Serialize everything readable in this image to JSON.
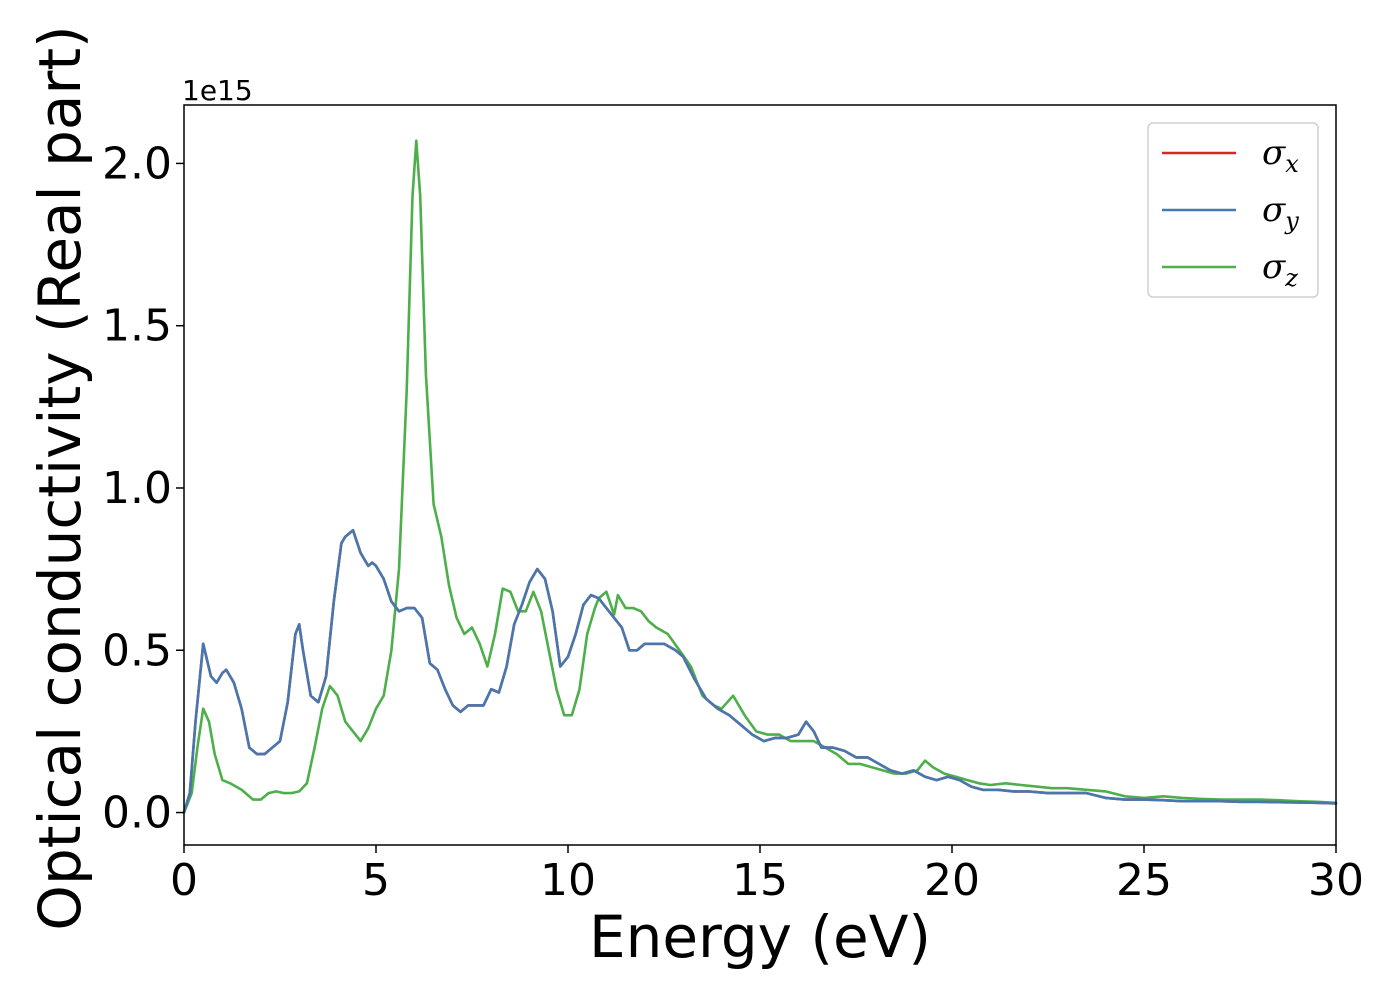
{
  "chart_data": {
    "type": "line",
    "xlabel": "Energy (eV)",
    "ylabel": "Optical conductivity (Real part)",
    "y_offset_label": "1e15",
    "xlim": [
      0,
      30
    ],
    "ylim": [
      -0.1,
      2.18
    ],
    "x_ticks": [
      0,
      5,
      10,
      15,
      20,
      25,
      30
    ],
    "x_tick_labels": [
      "0",
      "5",
      "10",
      "15",
      "20",
      "25",
      "30"
    ],
    "y_ticks": [
      0.0,
      0.5,
      1.0,
      1.5,
      2.0
    ],
    "y_tick_labels": [
      "0.0",
      "0.5",
      "1.0",
      "1.5",
      "2.0"
    ],
    "grid": false,
    "legend_position": "top-right",
    "series": [
      {
        "name": "σx",
        "symbol": "σ",
        "subscript": "x",
        "color": "#d62728",
        "x": [
          0,
          0.15,
          0.3,
          0.5,
          0.7,
          0.85,
          1.0,
          1.1,
          1.3,
          1.5,
          1.7,
          1.9,
          2.1,
          2.3,
          2.5,
          2.7,
          2.9,
          3.0,
          3.1,
          3.3,
          3.5,
          3.7,
          3.9,
          4.1,
          4.2,
          4.4,
          4.6,
          4.8,
          4.9,
          5.0,
          5.2,
          5.4,
          5.6,
          5.8,
          6.0,
          6.2,
          6.4,
          6.6,
          6.8,
          7.0,
          7.2,
          7.4,
          7.6,
          7.8,
          8.0,
          8.2,
          8.4,
          8.6,
          8.8,
          9.0,
          9.2,
          9.4,
          9.6,
          9.8,
          10.0,
          10.2,
          10.4,
          10.6,
          10.8,
          11.0,
          11.2,
          11.4,
          11.6,
          11.8,
          12.0,
          12.2,
          12.5,
          12.8,
          13.0,
          13.3,
          13.6,
          13.9,
          14.2,
          14.5,
          14.8,
          15.1,
          15.4,
          15.7,
          16.0,
          16.2,
          16.4,
          16.6,
          16.9,
          17.2,
          17.5,
          17.8,
          18.1,
          18.4,
          18.7,
          19.0,
          19.3,
          19.6,
          19.9,
          20.2,
          20.5,
          20.8,
          21.2,
          21.6,
          22.0,
          22.5,
          23.0,
          23.5,
          24.0,
          24.5,
          25.0,
          25.5,
          26.0,
          26.5,
          27.0,
          27.5,
          28.0,
          28.5,
          29.0,
          29.5,
          30.0
        ],
        "y": [
          0.0,
          0.06,
          0.28,
          0.52,
          0.42,
          0.4,
          0.43,
          0.44,
          0.4,
          0.32,
          0.2,
          0.18,
          0.18,
          0.2,
          0.22,
          0.34,
          0.55,
          0.58,
          0.5,
          0.36,
          0.34,
          0.42,
          0.65,
          0.83,
          0.85,
          0.87,
          0.8,
          0.76,
          0.77,
          0.76,
          0.72,
          0.65,
          0.62,
          0.63,
          0.63,
          0.6,
          0.46,
          0.44,
          0.38,
          0.33,
          0.31,
          0.33,
          0.33,
          0.33,
          0.38,
          0.37,
          0.45,
          0.58,
          0.64,
          0.71,
          0.75,
          0.72,
          0.62,
          0.45,
          0.48,
          0.55,
          0.64,
          0.67,
          0.66,
          0.63,
          0.6,
          0.57,
          0.5,
          0.5,
          0.52,
          0.52,
          0.52,
          0.5,
          0.48,
          0.41,
          0.35,
          0.32,
          0.3,
          0.27,
          0.24,
          0.22,
          0.23,
          0.23,
          0.24,
          0.28,
          0.25,
          0.2,
          0.2,
          0.19,
          0.17,
          0.17,
          0.15,
          0.13,
          0.12,
          0.13,
          0.11,
          0.1,
          0.11,
          0.1,
          0.08,
          0.07,
          0.07,
          0.065,
          0.065,
          0.06,
          0.06,
          0.06,
          0.045,
          0.04,
          0.04,
          0.038,
          0.035,
          0.035,
          0.035,
          0.033,
          0.033,
          0.032,
          0.031,
          0.03,
          0.028
        ]
      },
      {
        "name": "σy",
        "symbol": "σ",
        "subscript": "y",
        "color": "#4678b0",
        "x": [
          0,
          0.15,
          0.3,
          0.5,
          0.7,
          0.85,
          1.0,
          1.1,
          1.3,
          1.5,
          1.7,
          1.9,
          2.1,
          2.3,
          2.5,
          2.7,
          2.9,
          3.0,
          3.1,
          3.3,
          3.5,
          3.7,
          3.9,
          4.1,
          4.2,
          4.4,
          4.6,
          4.8,
          4.9,
          5.0,
          5.2,
          5.4,
          5.6,
          5.8,
          6.0,
          6.2,
          6.4,
          6.6,
          6.8,
          7.0,
          7.2,
          7.4,
          7.6,
          7.8,
          8.0,
          8.2,
          8.4,
          8.6,
          8.8,
          9.0,
          9.2,
          9.4,
          9.6,
          9.8,
          10.0,
          10.2,
          10.4,
          10.6,
          10.8,
          11.0,
          11.2,
          11.4,
          11.6,
          11.8,
          12.0,
          12.2,
          12.5,
          12.8,
          13.0,
          13.3,
          13.6,
          13.9,
          14.2,
          14.5,
          14.8,
          15.1,
          15.4,
          15.7,
          16.0,
          16.2,
          16.4,
          16.6,
          16.9,
          17.2,
          17.5,
          17.8,
          18.1,
          18.4,
          18.7,
          19.0,
          19.3,
          19.6,
          19.9,
          20.2,
          20.5,
          20.8,
          21.2,
          21.6,
          22.0,
          22.5,
          23.0,
          23.5,
          24.0,
          24.5,
          25.0,
          25.5,
          26.0,
          26.5,
          27.0,
          27.5,
          28.0,
          28.5,
          29.0,
          29.5,
          30.0
        ],
        "y": [
          0.0,
          0.06,
          0.28,
          0.52,
          0.42,
          0.4,
          0.43,
          0.44,
          0.4,
          0.32,
          0.2,
          0.18,
          0.18,
          0.2,
          0.22,
          0.34,
          0.55,
          0.58,
          0.5,
          0.36,
          0.34,
          0.42,
          0.65,
          0.83,
          0.85,
          0.87,
          0.8,
          0.76,
          0.77,
          0.76,
          0.72,
          0.65,
          0.62,
          0.63,
          0.63,
          0.6,
          0.46,
          0.44,
          0.38,
          0.33,
          0.31,
          0.33,
          0.33,
          0.33,
          0.38,
          0.37,
          0.45,
          0.58,
          0.64,
          0.71,
          0.75,
          0.72,
          0.62,
          0.45,
          0.48,
          0.55,
          0.64,
          0.67,
          0.66,
          0.63,
          0.6,
          0.57,
          0.5,
          0.5,
          0.52,
          0.52,
          0.52,
          0.5,
          0.48,
          0.41,
          0.35,
          0.32,
          0.3,
          0.27,
          0.24,
          0.22,
          0.23,
          0.23,
          0.24,
          0.28,
          0.25,
          0.2,
          0.2,
          0.19,
          0.17,
          0.17,
          0.15,
          0.13,
          0.12,
          0.13,
          0.11,
          0.1,
          0.11,
          0.1,
          0.08,
          0.07,
          0.07,
          0.065,
          0.065,
          0.06,
          0.06,
          0.06,
          0.045,
          0.04,
          0.04,
          0.038,
          0.035,
          0.035,
          0.035,
          0.033,
          0.033,
          0.032,
          0.031,
          0.03,
          0.028
        ]
      },
      {
        "name": "σz",
        "symbol": "σ",
        "subscript": "z",
        "color": "#4daf4a",
        "x": [
          0,
          0.2,
          0.35,
          0.5,
          0.65,
          0.8,
          1.0,
          1.2,
          1.5,
          1.8,
          2.0,
          2.2,
          2.4,
          2.6,
          2.8,
          3.0,
          3.2,
          3.4,
          3.6,
          3.8,
          4.0,
          4.2,
          4.4,
          4.6,
          4.8,
          5.0,
          5.2,
          5.4,
          5.6,
          5.8,
          5.95,
          6.05,
          6.15,
          6.3,
          6.5,
          6.7,
          6.9,
          7.1,
          7.3,
          7.5,
          7.7,
          7.9,
          8.1,
          8.3,
          8.5,
          8.7,
          8.9,
          9.1,
          9.3,
          9.5,
          9.7,
          9.9,
          10.1,
          10.3,
          10.5,
          10.7,
          10.8,
          11.0,
          11.2,
          11.3,
          11.5,
          11.7,
          11.9,
          12.1,
          12.3,
          12.6,
          12.9,
          13.2,
          13.5,
          13.8,
          14.0,
          14.3,
          14.6,
          14.9,
          15.2,
          15.5,
          15.8,
          16.1,
          16.4,
          16.7,
          17.0,
          17.3,
          17.6,
          17.9,
          18.2,
          18.5,
          18.8,
          19.1,
          19.3,
          19.5,
          19.8,
          20.1,
          20.4,
          20.7,
          21.0,
          21.4,
          21.8,
          22.2,
          22.6,
          23.0,
          23.5,
          24.0,
          24.5,
          25.0,
          25.5,
          26.0,
          26.5,
          27.0,
          27.5,
          28.0,
          28.5,
          29.0,
          29.5,
          30.0
        ],
        "y": [
          0.0,
          0.06,
          0.2,
          0.32,
          0.28,
          0.18,
          0.1,
          0.09,
          0.07,
          0.04,
          0.04,
          0.06,
          0.065,
          0.06,
          0.06,
          0.065,
          0.09,
          0.2,
          0.32,
          0.39,
          0.36,
          0.28,
          0.25,
          0.22,
          0.26,
          0.32,
          0.36,
          0.5,
          0.75,
          1.3,
          1.9,
          2.07,
          1.9,
          1.35,
          0.95,
          0.85,
          0.7,
          0.6,
          0.55,
          0.57,
          0.52,
          0.45,
          0.55,
          0.69,
          0.68,
          0.62,
          0.62,
          0.68,
          0.62,
          0.5,
          0.38,
          0.3,
          0.3,
          0.38,
          0.55,
          0.63,
          0.66,
          0.68,
          0.61,
          0.67,
          0.63,
          0.63,
          0.62,
          0.59,
          0.57,
          0.55,
          0.5,
          0.45,
          0.36,
          0.33,
          0.32,
          0.36,
          0.3,
          0.25,
          0.24,
          0.24,
          0.22,
          0.22,
          0.22,
          0.2,
          0.18,
          0.15,
          0.15,
          0.14,
          0.13,
          0.12,
          0.12,
          0.13,
          0.16,
          0.14,
          0.12,
          0.11,
          0.1,
          0.09,
          0.085,
          0.09,
          0.085,
          0.08,
          0.075,
          0.075,
          0.07,
          0.065,
          0.05,
          0.045,
          0.05,
          0.045,
          0.042,
          0.04,
          0.04,
          0.04,
          0.038,
          0.035,
          0.033,
          0.03
        ]
      }
    ]
  }
}
